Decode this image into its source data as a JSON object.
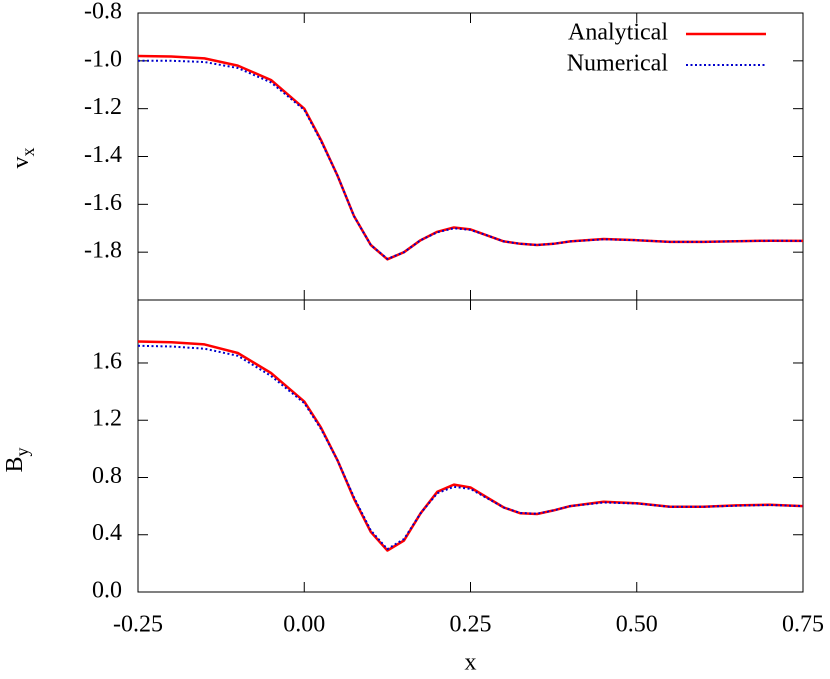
{
  "chart_data": [
    {
      "type": "line",
      "ylabel": "v",
      "ylabel_sub": "x",
      "x": [
        -0.25,
        -0.2,
        -0.15,
        -0.1,
        -0.05,
        0,
        0.025,
        0.05,
        0.075,
        0.1,
        0.125,
        0.15,
        0.175,
        0.2,
        0.225,
        0.25,
        0.275,
        0.3,
        0.325,
        0.35,
        0.375,
        0.4,
        0.45,
        0.5,
        0.55,
        0.6,
        0.65,
        0.7,
        0.75
      ],
      "xlim": [
        -0.25,
        0.75
      ],
      "xticks": [
        -0.25,
        0,
        0.25,
        0.5,
        0.75
      ],
      "ylim": [
        -2.0,
        -0.8
      ],
      "yticks": [
        {
          "value": -0.8,
          "label": "-0.8"
        },
        {
          "value": -1.0,
          "label": "-1.0"
        },
        {
          "value": -1.2,
          "label": "-1.2"
        },
        {
          "value": -1.4,
          "label": "-1.4"
        },
        {
          "value": -1.6,
          "label": "-1.6"
        },
        {
          "value": -1.8,
          "label": "-1.8"
        }
      ],
      "legend": "top-right",
      "series": [
        {
          "name": "Analytical",
          "color": "#ff0000",
          "dash": "solid",
          "values": [
            -0.98,
            -0.982,
            -0.99,
            -1.02,
            -1.08,
            -1.2,
            -1.33,
            -1.48,
            -1.65,
            -1.77,
            -1.83,
            -1.8,
            -1.75,
            -1.715,
            -1.697,
            -1.705,
            -1.73,
            -1.755,
            -1.765,
            -1.77,
            -1.765,
            -1.755,
            -1.745,
            -1.75,
            -1.757,
            -1.757,
            -1.754,
            -1.752,
            -1.753
          ]
        },
        {
          "name": "Numerical",
          "color": "#0000cc",
          "dash": "dotted",
          "values": [
            -1.0,
            -1.0,
            -1.005,
            -1.03,
            -1.09,
            -1.205,
            -1.335,
            -1.48,
            -1.65,
            -1.77,
            -1.828,
            -1.8,
            -1.75,
            -1.717,
            -1.7,
            -1.707,
            -1.73,
            -1.755,
            -1.765,
            -1.77,
            -1.765,
            -1.755,
            -1.746,
            -1.75,
            -1.757,
            -1.757,
            -1.754,
            -1.752,
            -1.753
          ]
        }
      ]
    },
    {
      "type": "line",
      "ylabel": "B",
      "ylabel_sub": "y",
      "xlabel": "x",
      "x": [
        -0.25,
        -0.2,
        -0.15,
        -0.1,
        -0.05,
        0,
        0.025,
        0.05,
        0.075,
        0.1,
        0.125,
        0.15,
        0.175,
        0.2,
        0.225,
        0.25,
        0.275,
        0.3,
        0.325,
        0.35,
        0.375,
        0.4,
        0.45,
        0.5,
        0.55,
        0.6,
        0.65,
        0.7,
        0.75
      ],
      "xlim": [
        -0.25,
        0.75
      ],
      "xticks": [
        {
          "value": -0.25,
          "label": "-0.25"
        },
        {
          "value": 0,
          "label": "0.00"
        },
        {
          "value": 0.25,
          "label": "0.25"
        },
        {
          "value": 0.5,
          "label": "0.50"
        },
        {
          "value": 0.75,
          "label": "0.75"
        }
      ],
      "ylim": [
        0,
        2.04
      ],
      "yticks": [
        {
          "value": 0,
          "label": "0.0"
        },
        {
          "value": 0.4,
          "label": "0.4"
        },
        {
          "value": 0.8,
          "label": "0.8"
        },
        {
          "value": 1.2,
          "label": "1.2"
        },
        {
          "value": 1.6,
          "label": "1.6"
        }
      ],
      "series": [
        {
          "color": "#ff0000",
          "dash": "solid",
          "values": [
            1.75,
            1.745,
            1.73,
            1.67,
            1.53,
            1.33,
            1.15,
            0.92,
            0.65,
            0.42,
            0.29,
            0.36,
            0.55,
            0.7,
            0.75,
            0.73,
            0.66,
            0.59,
            0.55,
            0.545,
            0.57,
            0.6,
            0.63,
            0.62,
            0.595,
            0.595,
            0.605,
            0.61,
            0.6
          ]
        },
        {
          "color": "#0000cc",
          "dash": "dotted",
          "values": [
            1.72,
            1.715,
            1.7,
            1.65,
            1.51,
            1.32,
            1.14,
            0.92,
            0.66,
            0.43,
            0.3,
            0.37,
            0.55,
            0.69,
            0.735,
            0.72,
            0.655,
            0.59,
            0.552,
            0.547,
            0.57,
            0.6,
            0.625,
            0.618,
            0.595,
            0.595,
            0.603,
            0.608,
            0.6
          ]
        }
      ]
    }
  ]
}
